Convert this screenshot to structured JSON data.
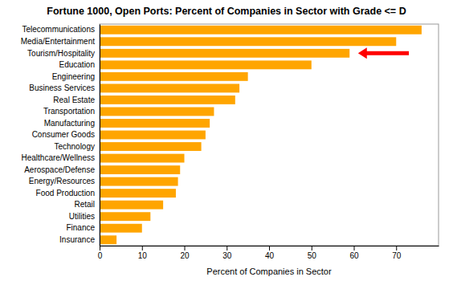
{
  "chart_data": {
    "type": "bar",
    "orientation": "horizontal",
    "title": "Fortune 1000, Open Ports: Percent of Companies in Sector with Grade <= D",
    "x_label": "Percent of Companies in Sector",
    "categories": [
      "Telecommunications",
      "Media/Entertainment",
      "Tourism/Hospitality",
      "Education",
      "Engineering",
      "Business Services",
      "Real Estate",
      "Transportation",
      "Manufacturing",
      "Consumer Goods",
      "Technology",
      "Healthcare/Wellness",
      "Aerospace/Defense",
      "Energy/Resources",
      "Food Production",
      "Retail",
      "Utilities",
      "Finance",
      "Insurance"
    ],
    "values": [
      76,
      70,
      59,
      50,
      35,
      33,
      32,
      27,
      26,
      25,
      24,
      20,
      19,
      18.5,
      18,
      15,
      12,
      10,
      4
    ],
    "color": "#FFA500",
    "xlim": [
      0,
      80
    ],
    "xticks": [
      0,
      10,
      20,
      30,
      40,
      50,
      60,
      70
    ],
    "grid": false,
    "annotations": [
      {
        "type": "arrow",
        "category": "Tourism/Hospitality",
        "from_x": 73,
        "to_x": 61,
        "color": "red"
      }
    ]
  }
}
